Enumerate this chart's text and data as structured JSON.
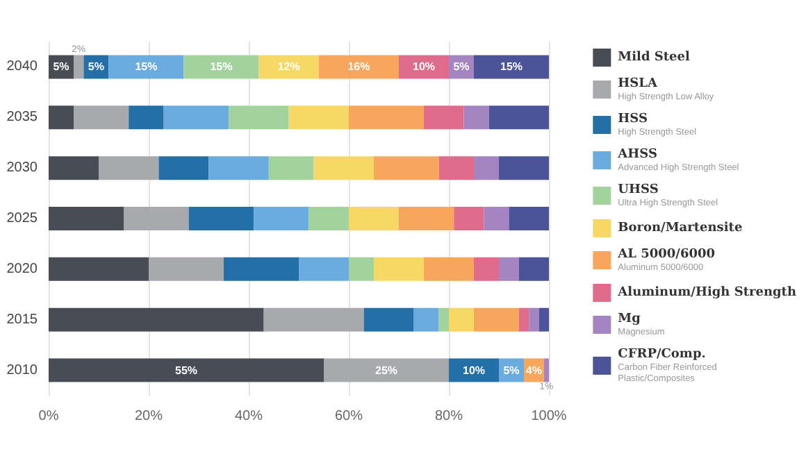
{
  "chart_data": {
    "type": "bar",
    "orientation": "horizontal",
    "stacked": true,
    "categories": [
      "2040",
      "2035",
      "2030",
      "2025",
      "2020",
      "2015",
      "2010"
    ],
    "xlim": [
      0,
      100
    ],
    "xticks": [
      {
        "value": 0,
        "label": "0%"
      },
      {
        "value": 20,
        "label": "20%"
      },
      {
        "value": 40,
        "label": "40%"
      },
      {
        "value": 60,
        "label": "60%"
      },
      {
        "value": 80,
        "label": "80%"
      },
      {
        "value": 100,
        "label": "100%"
      }
    ],
    "grid": "x",
    "legend": "right",
    "series": [
      {
        "name": "Mild Steel",
        "color": "#474c55",
        "values": [
          5,
          5,
          10,
          15,
          20,
          43,
          55
        ],
        "value_labels": [
          "5%",
          null,
          null,
          null,
          null,
          null,
          "55%"
        ]
      },
      {
        "name": "HSLA\nHigh Strength Low Alloy",
        "color": "#a7a9ac",
        "values": [
          2,
          11,
          12,
          13,
          15,
          20,
          25
        ],
        "value_labels": [
          "2%",
          null,
          null,
          null,
          null,
          null,
          "25%"
        ]
      },
      {
        "name": "HSS\nHigh Strength Steel",
        "color": "#2370a8",
        "values": [
          5,
          7,
          10,
          13,
          15,
          10,
          10
        ],
        "value_labels": [
          "5%",
          null,
          null,
          null,
          null,
          null,
          "10%"
        ]
      },
      {
        "name": "AHSS\nAdvanced High Strength Steel",
        "color": "#6aace0",
        "values": [
          15,
          13,
          12,
          11,
          10,
          5,
          5
        ],
        "value_labels": [
          "15%",
          null,
          null,
          null,
          null,
          null,
          "5%"
        ]
      },
      {
        "name": "UHSS\nUltra High Strength Steel",
        "color": "#a3d39c",
        "values": [
          15,
          12,
          9,
          8,
          5,
          2,
          0
        ],
        "value_labels": [
          "15%",
          null,
          null,
          null,
          null,
          null,
          null
        ]
      },
      {
        "name": "Boron/Martensite",
        "color": "#f8d864",
        "values": [
          12,
          12,
          12,
          10,
          10,
          5,
          0
        ],
        "value_labels": [
          "12%",
          null,
          null,
          null,
          null,
          null,
          null
        ]
      },
      {
        "name": "AL 5000/6000\nAluminum 5000/6000",
        "color": "#f7a65c",
        "values": [
          16,
          15,
          13,
          11,
          10,
          9,
          4
        ],
        "value_labels": [
          "16%",
          null,
          null,
          null,
          null,
          null,
          "4%"
        ]
      },
      {
        "name": "Aluminum/High Strength",
        "color": "#e06b8b",
        "values": [
          10,
          8,
          7,
          6,
          5,
          2,
          0
        ],
        "value_labels": [
          "10%",
          null,
          null,
          null,
          null,
          null,
          null
        ]
      },
      {
        "name": "Mg\nMagnesium",
        "color": "#a585c1",
        "values": [
          5,
          5,
          5,
          5,
          4,
          2,
          1
        ],
        "value_labels": [
          "5%",
          null,
          null,
          null,
          null,
          null,
          "1%"
        ]
      },
      {
        "name": "CFRP/Comp.\nCarbon Fiber Reinforced Plastic/Composites",
        "color": "#4b5499",
        "values": [
          15,
          12,
          10,
          8,
          6,
          2,
          0
        ],
        "value_labels": [
          "15%",
          null,
          null,
          null,
          null,
          null,
          null
        ]
      }
    ]
  }
}
